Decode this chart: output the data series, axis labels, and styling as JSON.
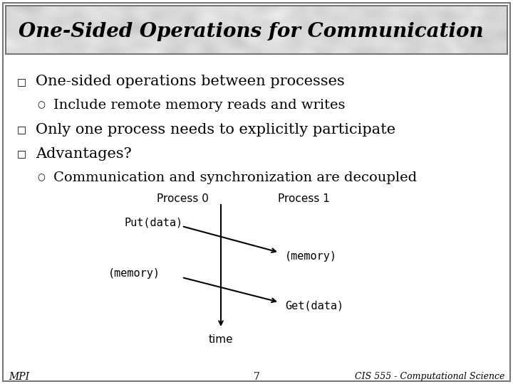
{
  "title": "One-Sided Operations for Communication",
  "title_fontsize": 20,
  "title_bg_color": "#d8d8d8",
  "title_text_color": "#000000",
  "bg_color": "#ffffff",
  "bullet1": "One-sided operations between processes",
  "sub1": "Include remote memory reads and writes",
  "bullet2": "Only one process needs to explicitly participate",
  "bullet3": "Advantages?",
  "sub3": "Communication and synchronization are decoupled",
  "proc0_label": "Process 0",
  "proc1_label": "Process 1",
  "put_label": "Put(data)",
  "memory0_label": "(memory)",
  "memory1_label": "(memory)",
  "get_label": "Get(data)",
  "time_label": "time",
  "footer_left": "MPI",
  "footer_center": "7",
  "footer_right": "CIS 555 - Computational Science",
  "text_color": "#000000",
  "bullet_color": "#000000",
  "font_size": 15,
  "sub_font_size": 14
}
